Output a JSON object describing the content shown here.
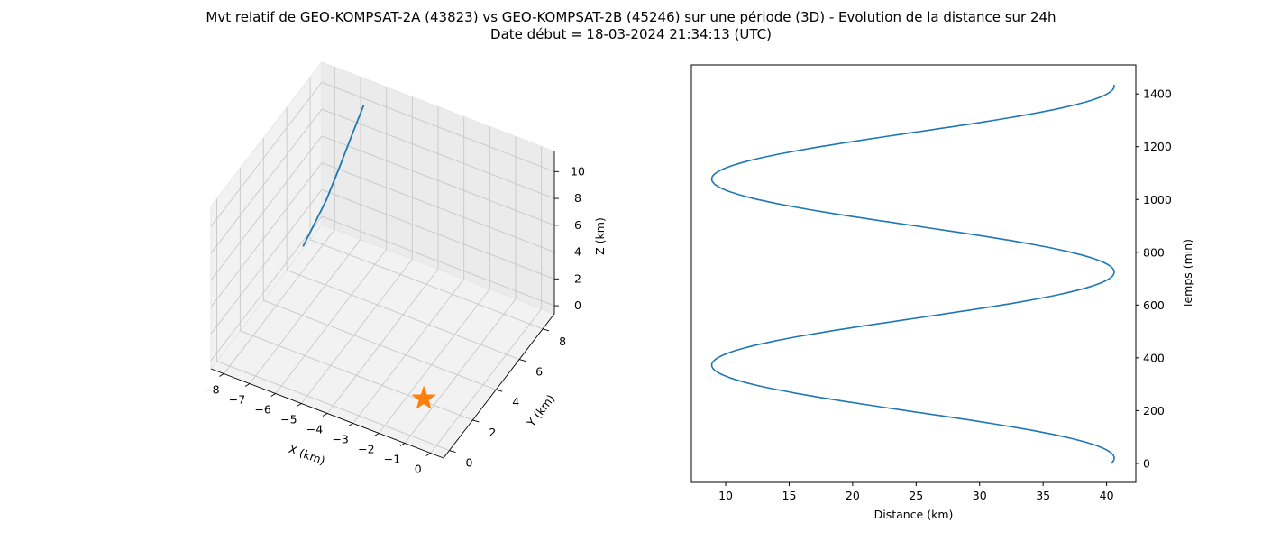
{
  "title": {
    "line1": "Mvt relatif de GEO-KOMPSAT-2A (43823) vs GEO-KOMPSAT-2B (45246) sur une période (3D) - Evolution de la distance sur 24h",
    "line2": "Date début = 18-03-2024 21:34:13 (UTC)"
  },
  "chart_data": [
    {
      "type": "line3d",
      "xlabel": "X (km)",
      "ylabel": "Y (km)",
      "zlabel": "Z (km)",
      "xlim": [
        -8.5,
        0.5
      ],
      "ylim": [
        -0.5,
        9.0
      ],
      "zlim": [
        -0.6,
        11.5
      ],
      "x_ticks": [
        -8,
        -7,
        -6,
        -5,
        -4,
        -3,
        -2,
        -1,
        0
      ],
      "y_ticks": [
        0,
        2,
        4,
        6,
        8
      ],
      "z_ticks": [
        0,
        2,
        4,
        6,
        8,
        10
      ],
      "series": [
        {
          "color": "#1f77b4",
          "points": [
            {
              "x": -6.45,
              "y": 8.05,
              "z": 10.9
            },
            {
              "x": -6.7,
              "y": 7.6,
              "z": 9.0
            },
            {
              "x": -6.95,
              "y": 7.1,
              "z": 7.0
            },
            {
              "x": -7.2,
              "y": 6.5,
              "z": 5.0
            },
            {
              "x": -7.45,
              "y": 5.9,
              "z": 3.5
            },
            {
              "x": -7.6,
              "y": 5.4,
              "z": 2.5
            }
          ]
        }
      ],
      "markers": [
        {
          "shape": "star",
          "color": "#ff7f0e",
          "x": 0,
          "y": 0,
          "z": 0
        }
      ],
      "grid": true
    },
    {
      "type": "line",
      "xlabel": "Distance (km)",
      "ylabel": "Temps (min)",
      "xlim": [
        7.3,
        42.3
      ],
      "ylim": [
        -72,
        1510
      ],
      "x_ticks": [
        10,
        15,
        20,
        25,
        30,
        35,
        40
      ],
      "y_ticks": [
        0,
        200,
        400,
        600,
        800,
        1000,
        1200,
        1400
      ],
      "series": [
        {
          "color": "#1f77b4",
          "mean": 24.75,
          "amplitude": 15.85,
          "period_min": 705,
          "phase_min": 725,
          "t_start": 0,
          "t_end": 1435
        }
      ]
    }
  ]
}
